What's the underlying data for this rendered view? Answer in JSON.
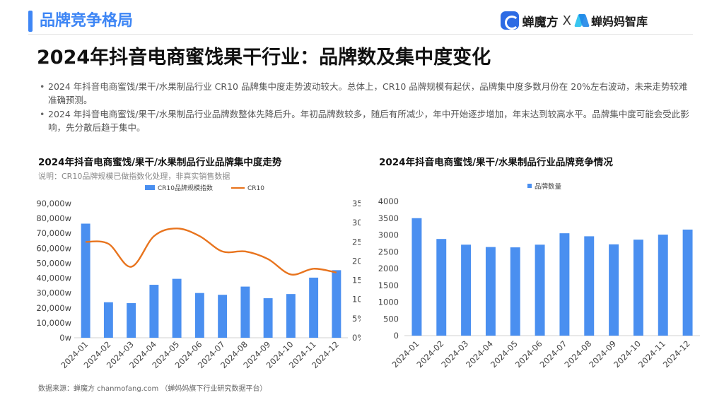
{
  "header": {
    "section_title": "品牌竞争格局",
    "brand1_name": "蝉魔方",
    "brand_separator": "X",
    "brand2_name": "蝉妈妈智库"
  },
  "main_title": "2024年抖音电商蜜饯果干行业：品牌数及集中度变化",
  "bullets": [
    "2024 年抖音电商蜜饯/果干/水果制品行业 CR10 品牌集中度走势波动较大。总体上，CR10 品牌规模有起伏，品牌集中度多数月份在 20%左右波动，未来走势较难准确预测。",
    "2024 年抖音电商蜜饯/果干/水果制品行业品牌数整体先降后升。年初品牌数较多，随后有所减少，年中开始逐步增加，年末达到较高水平。品牌集中度可能会受此影响，先分散后趋于集中。"
  ],
  "chart_data": [
    {
      "type": "bar",
      "title": "2024年抖音电商蜜饯/果干/水果制品行业品牌集中度走势",
      "note": "说明：CR10品牌规模已做指数化处理，非真实销售数据",
      "categories": [
        "2024-01",
        "2024-02",
        "2024-03",
        "2024-04",
        "2024-05",
        "2024-06",
        "2024-07",
        "2024-08",
        "2024-09",
        "2024-10",
        "2024-11",
        "2024-12"
      ],
      "series": [
        {
          "name": "CR10品牌规模指数",
          "kind": "bar",
          "axis": "left",
          "color": "#4a8ff0",
          "values": [
            76500,
            23800,
            23200,
            35500,
            39500,
            30000,
            28800,
            34300,
            26500,
            29300,
            40300,
            45300
          ]
        },
        {
          "name": "CR10",
          "kind": "line",
          "axis": "right",
          "color": "#e8741e",
          "values": [
            25.0,
            24.5,
            18.5,
            26.5,
            28.5,
            26.5,
            22.5,
            22.5,
            20.5,
            16.5,
            18.0,
            17.0
          ]
        }
      ],
      "ylim_left": [
        0,
        90000
      ],
      "ylim_right": [
        0,
        35
      ],
      "left_tick_labels": [
        "0w",
        "10,000w",
        "20,000w",
        "30,000w",
        "40,000w",
        "50,000w",
        "60,000w",
        "70,000w",
        "80,000w",
        "90,000w"
      ],
      "right_tick_labels": [
        "0%",
        "5%",
        "10%",
        "15%",
        "20%",
        "25%",
        "30%",
        "35%"
      ],
      "legend": "top"
    },
    {
      "type": "bar",
      "title": "2024年抖音电商蜜饯/果干/水果制品行业品牌竞争情况",
      "categories": [
        "2024-01",
        "2024-02",
        "2024-03",
        "2024-04",
        "2024-05",
        "2024-06",
        "2024-07",
        "2024-08",
        "2024-09",
        "2024-10",
        "2024-11",
        "2024-12"
      ],
      "series": [
        {
          "name": "品牌数量",
          "color": "#4a8ff0",
          "values": [
            3500,
            2880,
            2710,
            2640,
            2630,
            2710,
            3050,
            2960,
            2720,
            2860,
            3010,
            3160
          ]
        }
      ],
      "ylim": [
        0,
        4000
      ],
      "tick_labels": [
        "0",
        "500",
        "1000",
        "1500",
        "2000",
        "2500",
        "3000",
        "3500",
        "4000"
      ],
      "legend": "top"
    }
  ],
  "footer": "数据来源：蝉魔方 chanmofang.com （蝉妈妈旗下行业研究数据平台）"
}
